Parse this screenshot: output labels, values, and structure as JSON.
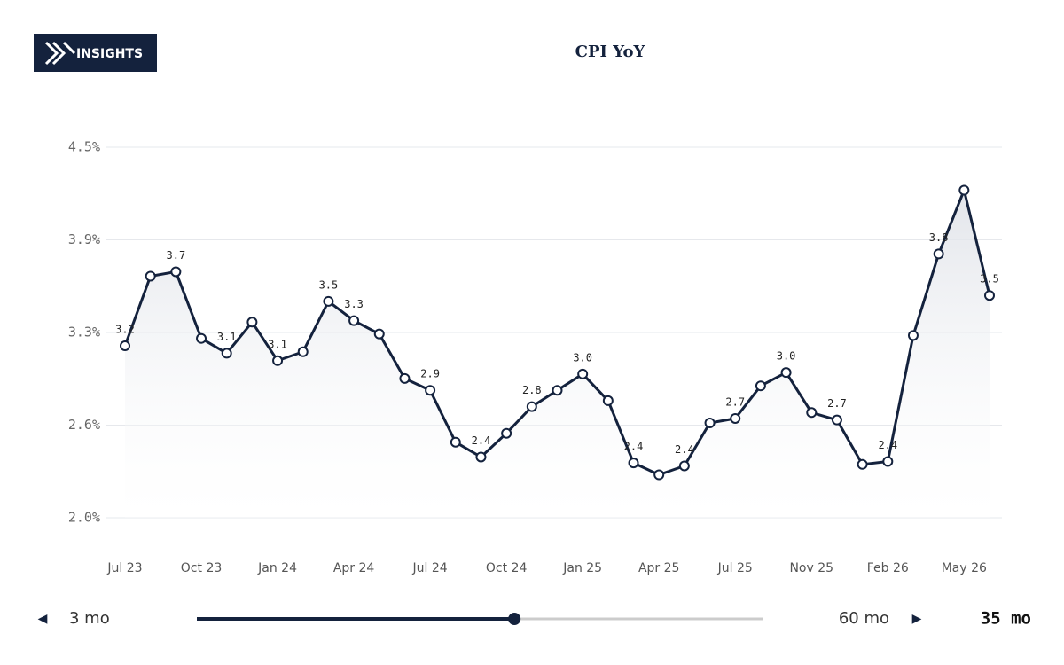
{
  "brand": "INSIGHTS",
  "chart_data": {
    "type": "line",
    "title": "CPI YoY",
    "categories": [
      "Jul 23",
      null,
      null,
      "Oct 23",
      null,
      null,
      "Jan 24",
      null,
      null,
      "Apr 24",
      null,
      null,
      "Jul 24",
      null,
      null,
      "Oct 24",
      null,
      null,
      "Jan 25",
      null,
      null,
      "Apr 25",
      null,
      null,
      "Jul 25",
      null,
      null,
      "Nov 25",
      null,
      null,
      "Feb 26",
      null,
      null,
      "May 26",
      null
    ],
    "series": [
      {
        "name": "CPI YoY",
        "color": "#14223d",
        "values": [
          3.16,
          3.63,
          3.66,
          3.21,
          3.11,
          3.32,
          3.06,
          3.12,
          3.46,
          3.33,
          3.24,
          2.94,
          2.86,
          2.51,
          2.41,
          2.57,
          2.75,
          2.86,
          2.97,
          2.79,
          2.37,
          2.29,
          2.35,
          2.64,
          2.67,
          2.89,
          2.98,
          2.71,
          2.66,
          2.36,
          2.38,
          3.23,
          3.78,
          4.21,
          3.5
        ],
        "value_labels": [
          "3.2",
          null,
          "3.7",
          null,
          "3.1",
          null,
          "3.1",
          null,
          "3.5",
          "3.3",
          null,
          null,
          "2.9",
          null,
          "2.4",
          null,
          "2.8",
          null,
          "3.0",
          null,
          "2.4",
          null,
          "2.4",
          null,
          "2.7",
          null,
          "3.0",
          null,
          "2.7",
          null,
          "2.4",
          null,
          "3.8",
          null,
          "3.5"
        ]
      }
    ],
    "ylim": [
      2.0,
      4.5
    ],
    "yticks": [
      {
        "value": 2.0,
        "label": "2.0%"
      },
      {
        "value": 2.625,
        "label": "2.6%"
      },
      {
        "value": 3.25,
        "label": "3.3%"
      },
      {
        "value": 3.875,
        "label": "3.9%"
      },
      {
        "value": 4.5,
        "label": "4.5%"
      }
    ],
    "grid": true
  },
  "slider": {
    "min": 3,
    "max": 60,
    "value": 35,
    "min_label": "3 mo",
    "max_label": "60 mo",
    "value_label": "35 mo"
  }
}
